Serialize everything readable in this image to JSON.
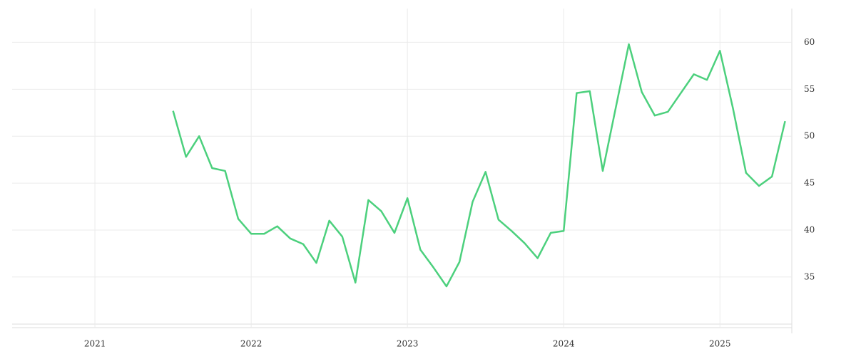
{
  "chart_data": {
    "type": "line",
    "x": [
      2021.5,
      2021.583,
      2021.667,
      2021.75,
      2021.833,
      2021.917,
      2022,
      2022.083,
      2022.167,
      2022.25,
      2022.333,
      2022.417,
      2022.5,
      2022.583,
      2022.667,
      2022.75,
      2022.833,
      2022.917,
      2023,
      2023.083,
      2023.167,
      2023.25,
      2023.333,
      2023.417,
      2023.5,
      2023.583,
      2023.667,
      2023.75,
      2023.833,
      2023.917,
      2024,
      2024.083,
      2024.167,
      2024.25,
      2024.333,
      2024.417,
      2024.5,
      2024.583,
      2024.667,
      2024.75,
      2024.833,
      2024.917,
      2025,
      2025.083,
      2025.167,
      2025.25,
      2025.333,
      2025.417
    ],
    "series": [
      {
        "color": "#4cd07d",
        "values": [
          52.7,
          47.8,
          50.0,
          46.6,
          46.3,
          41.2,
          39.6,
          39.6,
          40.4,
          39.1,
          38.5,
          36.5,
          41.0,
          39.3,
          34.4,
          43.2,
          42.0,
          39.7,
          43.4,
          37.9,
          36.0,
          34.0,
          36.6,
          43.0,
          46.2,
          41.1,
          39.9,
          38.6,
          37.0,
          39.7,
          39.9,
          54.6,
          54.8,
          46.3,
          53.0,
          59.8,
          54.7,
          52.2,
          52.6,
          54.6,
          56.6,
          56.0,
          59.1,
          53.0,
          46.1,
          44.7,
          45.7,
          51.6
        ]
      }
    ],
    "xlim": [
      2020.47,
      2025.46
    ],
    "xticks": [
      2021,
      2022,
      2023,
      2024,
      2025
    ],
    "ylim": [
      29.6,
      63.6
    ],
    "yticks": [
      35,
      40,
      45,
      50,
      55,
      60
    ],
    "y_axis_side": "right",
    "grid": true
  }
}
